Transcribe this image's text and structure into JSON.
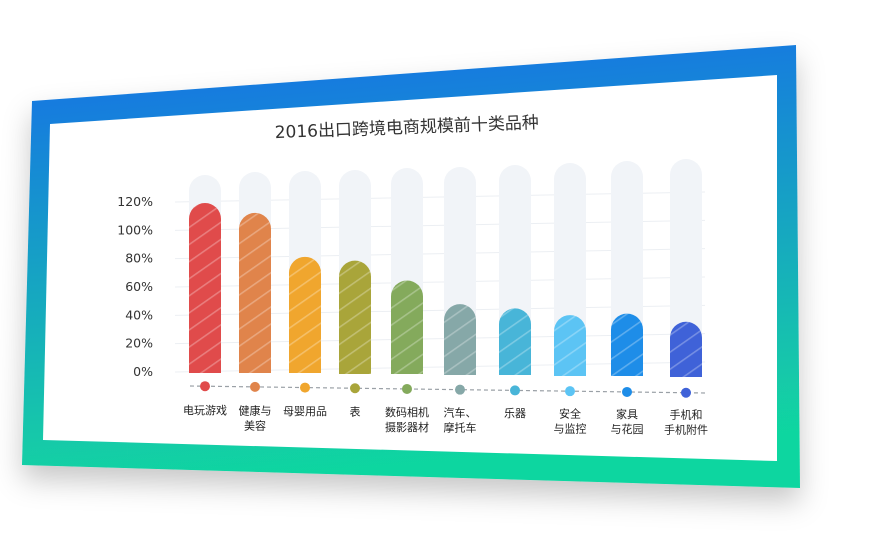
{
  "chart_data": {
    "type": "bar",
    "title": "2016出口跨境电商规模前十类品种",
    "categories": [
      [
        "电玩游戏"
      ],
      [
        "健康与",
        "美容"
      ],
      [
        "母婴用品"
      ],
      [
        "表"
      ],
      [
        "数码相机",
        "摄影器材"
      ],
      [
        "汽车、",
        "摩托车"
      ],
      [
        "乐器"
      ],
      [
        "安全",
        "与监控"
      ],
      [
        "家具",
        "与花园"
      ],
      [
        "手机和",
        "手机附件"
      ]
    ],
    "values": [
      120,
      113,
      82,
      80,
      66,
      50,
      47,
      43,
      44,
      39
    ],
    "yticks": [
      "0%",
      "20%",
      "40%",
      "60%",
      "80%",
      "100%",
      "120%"
    ],
    "ylim": [
      0,
      140
    ],
    "bar_colors": [
      "#e04b4b",
      "#e0844b",
      "#f0a62e",
      "#a9a53a",
      "#84aa5c",
      "#86a8a8",
      "#48b5d8",
      "#5cc4f4",
      "#1e8de8",
      "#3f62d8"
    ],
    "xlabel": "",
    "ylabel": "",
    "grid": true,
    "legend": "none"
  },
  "colors": {
    "frame_top": "#1a6ee8",
    "frame_bottom": "#11d6a0",
    "track": "#f1f4f8"
  }
}
